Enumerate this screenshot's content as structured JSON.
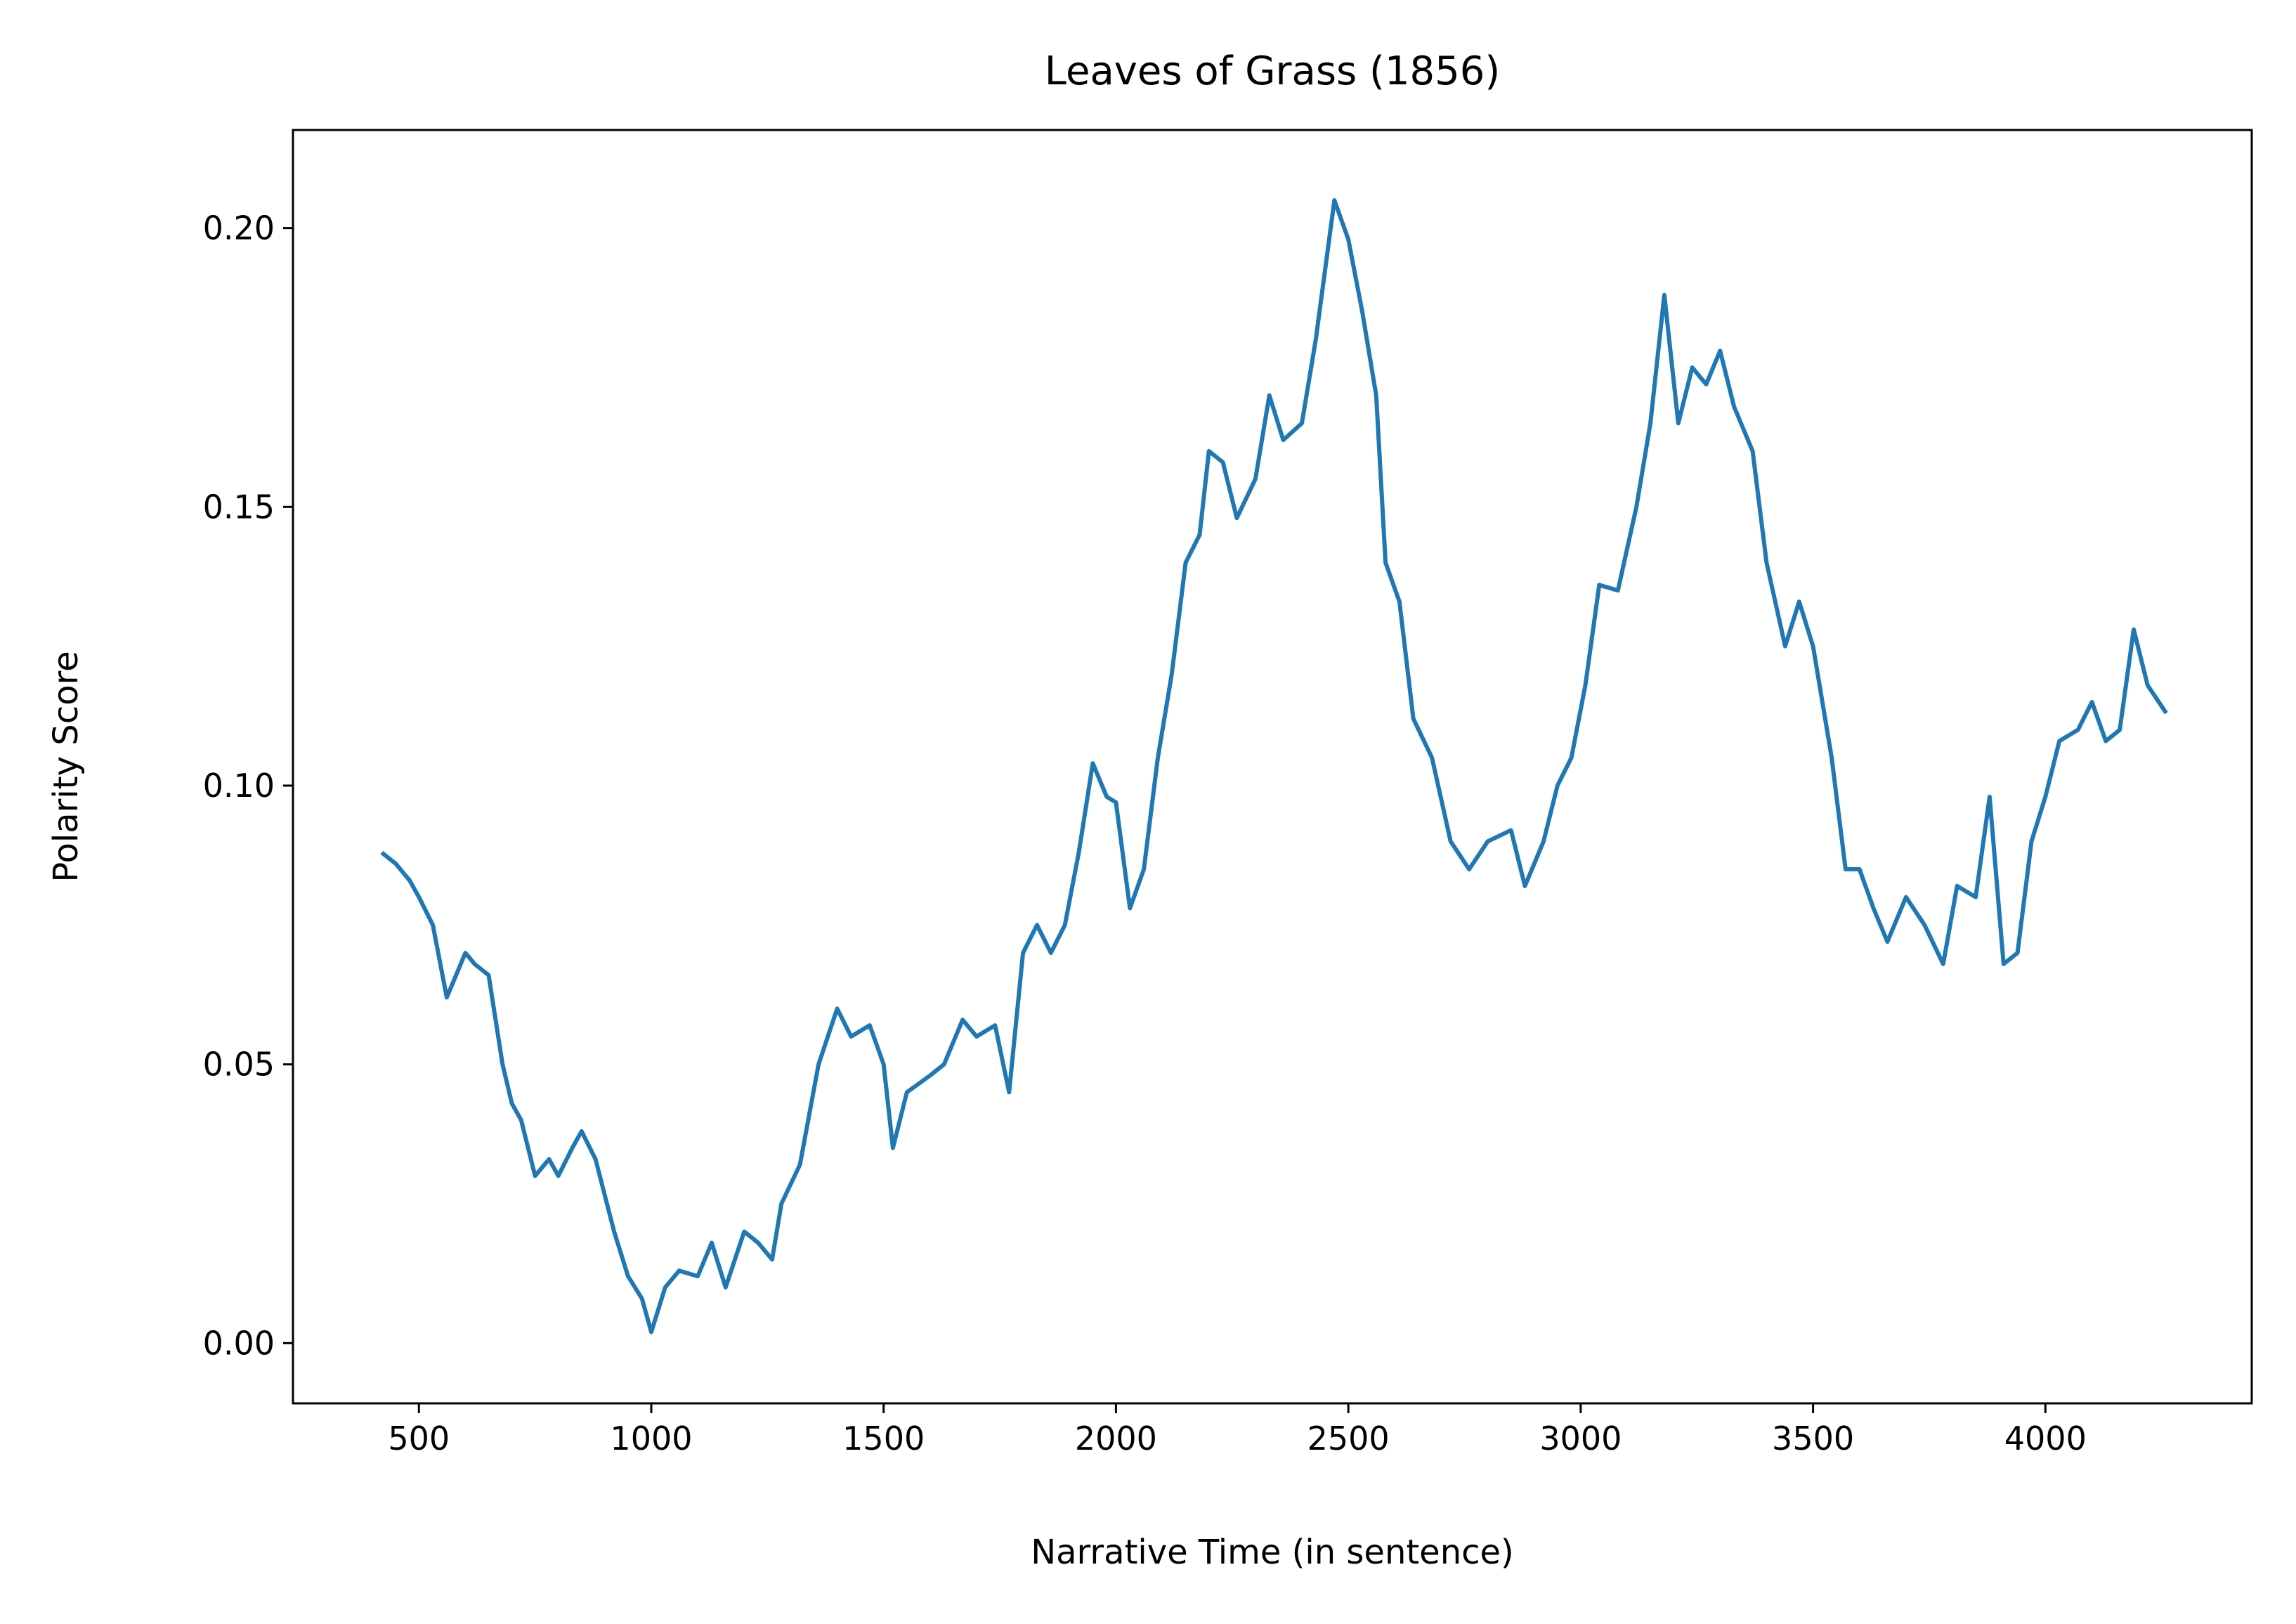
{
  "chart_data": {
    "type": "line",
    "title": "Leaves of Grass (1856)",
    "x_label": "Narrative Time (in sentence)",
    "y_label": "Polarity Score",
    "series": [
      {
        "color": "#1f77b4",
        "x": [
          420,
          450,
          480,
          500,
          530,
          560,
          600,
          620,
          650,
          680,
          700,
          720,
          750,
          780,
          800,
          830,
          850,
          880,
          920,
          950,
          980,
          1000,
          1030,
          1060,
          1100,
          1130,
          1160,
          1200,
          1230,
          1260,
          1280,
          1320,
          1360,
          1400,
          1430,
          1470,
          1500,
          1520,
          1550,
          1600,
          1630,
          1670,
          1700,
          1740,
          1770,
          1800,
          1830,
          1860,
          1890,
          1920,
          1950,
          1980,
          2000,
          2030,
          2060,
          2090,
          2120,
          2150,
          2180,
          2200,
          2230,
          2260,
          2300,
          2330,
          2360,
          2400,
          2430,
          2470,
          2500,
          2530,
          2560,
          2580,
          2610,
          2640,
          2680,
          2720,
          2760,
          2800,
          2850,
          2880,
          2920,
          2950,
          2980,
          3010,
          3040,
          3080,
          3120,
          3150,
          3180,
          3210,
          3240,
          3270,
          3300,
          3330,
          3370,
          3400,
          3440,
          3470,
          3500,
          3540,
          3570,
          3600,
          3630,
          3660,
          3700,
          3740,
          3780,
          3810,
          3850,
          3880,
          3910,
          3940,
          3970,
          4000,
          4030,
          4070,
          4100,
          4130,
          4160,
          4190,
          4220,
          4260
        ],
        "values": [
          0.088,
          0.086,
          0.083,
          0.08,
          0.075,
          0.062,
          0.07,
          0.068,
          0.066,
          0.05,
          0.043,
          0.04,
          0.03,
          0.033,
          0.03,
          0.035,
          0.038,
          0.033,
          0.02,
          0.012,
          0.008,
          0.002,
          0.01,
          0.013,
          0.012,
          0.018,
          0.01,
          0.02,
          0.018,
          0.015,
          0.025,
          0.032,
          0.05,
          0.06,
          0.055,
          0.057,
          0.05,
          0.035,
          0.045,
          0.048,
          0.05,
          0.058,
          0.055,
          0.057,
          0.045,
          0.07,
          0.075,
          0.07,
          0.075,
          0.088,
          0.104,
          0.098,
          0.097,
          0.078,
          0.085,
          0.105,
          0.12,
          0.14,
          0.145,
          0.16,
          0.158,
          0.148,
          0.155,
          0.17,
          0.162,
          0.165,
          0.18,
          0.205,
          0.198,
          0.185,
          0.17,
          0.14,
          0.133,
          0.112,
          0.105,
          0.09,
          0.085,
          0.09,
          0.092,
          0.082,
          0.09,
          0.1,
          0.105,
          0.118,
          0.136,
          0.135,
          0.15,
          0.165,
          0.188,
          0.165,
          0.175,
          0.172,
          0.178,
          0.168,
          0.16,
          0.14,
          0.125,
          0.133,
          0.125,
          0.105,
          0.085,
          0.085,
          0.078,
          0.072,
          0.08,
          0.075,
          0.068,
          0.082,
          0.08,
          0.098,
          0.068,
          0.07,
          0.09,
          0.098,
          0.108,
          0.11,
          0.115,
          0.108,
          0.11,
          0.128,
          0.118,
          0.113
        ]
      }
    ],
    "xlim": [
      229,
      4444
    ],
    "xticks": [
      500,
      1000,
      1500,
      2000,
      2500,
      3000,
      3500,
      4000
    ],
    "ylim": [
      -0.0108,
      0.2176
    ],
    "yticks": [
      {
        "value": 0,
        "label": "0.00"
      },
      {
        "value": 0.05,
        "label": "0.05"
      },
      {
        "value": 0.1,
        "label": "0.10"
      },
      {
        "value": 0.15,
        "label": "0.15"
      },
      {
        "value": 0.2,
        "label": "0.20"
      }
    ]
  }
}
